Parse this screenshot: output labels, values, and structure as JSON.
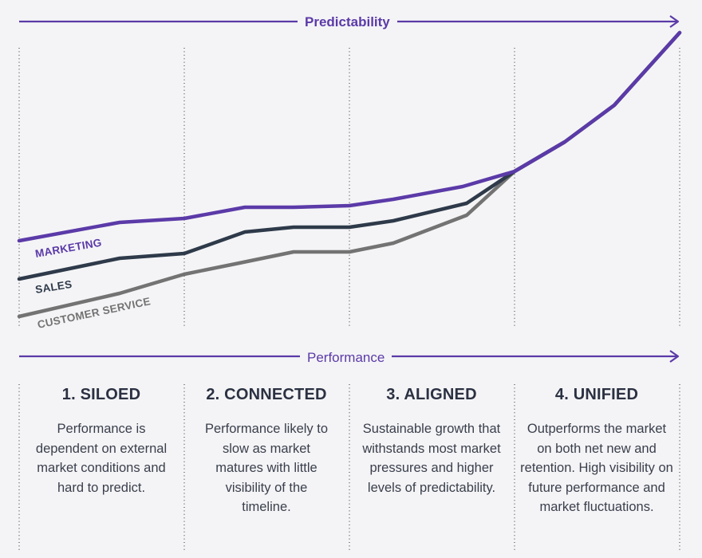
{
  "top_axis": {
    "label": "Predictability"
  },
  "bottom_axis": {
    "label": "Performance"
  },
  "series_labels": {
    "marketing": "MARKETING",
    "sales": "SALES",
    "customer_service": "CUSTOMER SERVICE"
  },
  "stages": [
    {
      "title": "1. SILOED",
      "description": "Performance is dependent on external market conditions and hard to predict."
    },
    {
      "title": "2. CONNECTED",
      "description": "Performance likely to slow as market matures with little visibility of the timeline."
    },
    {
      "title": "3. ALIGNED",
      "description": "Sustainable growth that withstands most market pressures and higher levels of predictability."
    },
    {
      "title": "4. UNIFIED",
      "description": "Outperforms the market on both net new and retention. High visibility on future performance and market fluctuations."
    }
  ],
  "colors": {
    "marketing": "#5b3aa8",
    "sales": "#2e3a4a",
    "customer_service": "#737373",
    "axis": "#5b3aa8"
  }
}
